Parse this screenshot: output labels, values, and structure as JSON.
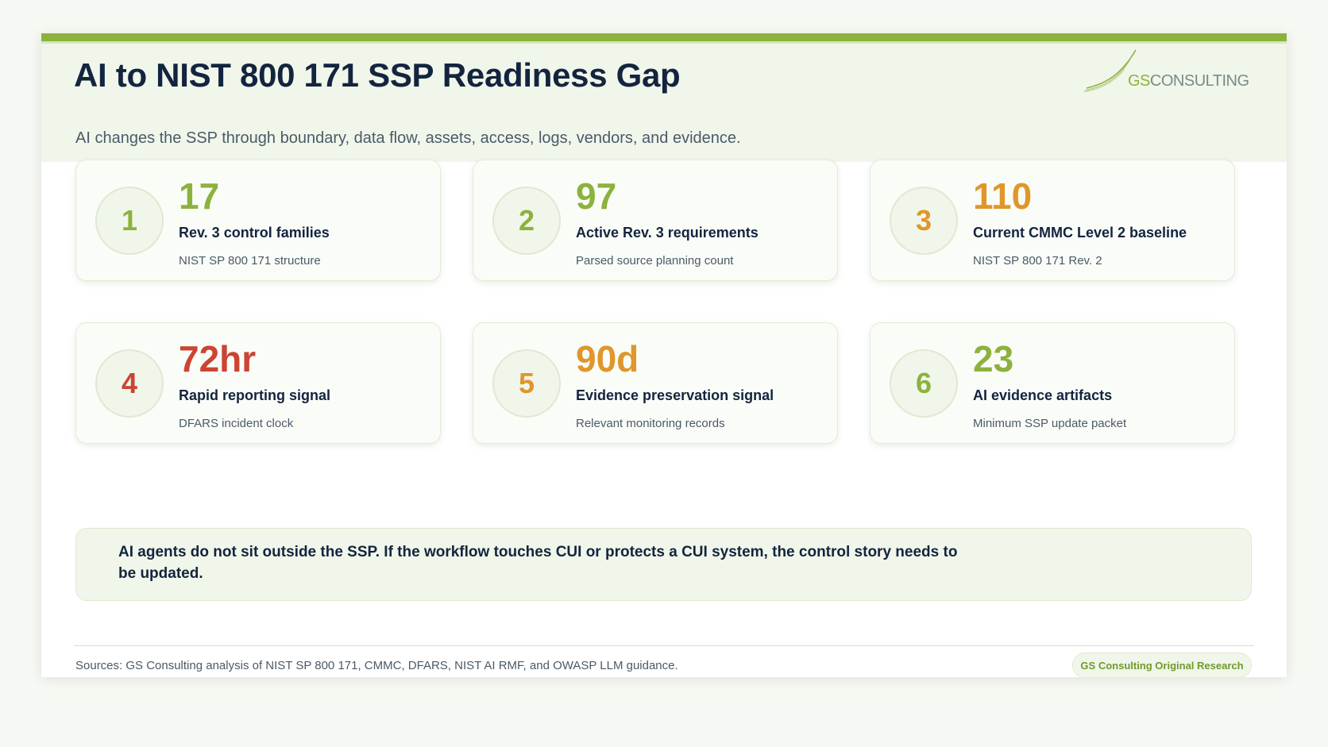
{
  "header": {
    "title": "AI to NIST 800 171 SSP Readiness Gap",
    "subtitle": "AI changes the SSP through boundary, data flow, assets, access, logs, vendors, and evidence.",
    "logo": {
      "gs": "GS",
      "consulting": "CONSULTING"
    }
  },
  "colors": {
    "brand_green": "#8cb23e",
    "amber": "#e0962a",
    "red": "#cc4433",
    "navy": "#13243f"
  },
  "stats": [
    {
      "number": "1",
      "value": "17",
      "label": "Rev. 3 control families",
      "note": "NIST SP 800 171 structure",
      "color": "#8cb23e"
    },
    {
      "number": "2",
      "value": "97",
      "label": "Active Rev. 3 requirements",
      "note": "Parsed source planning count",
      "color": "#8cb23e"
    },
    {
      "number": "3",
      "value": "110",
      "label": "Current CMMC Level 2 baseline",
      "note": "NIST SP 800 171 Rev. 2",
      "color": "#e0962a"
    },
    {
      "number": "4",
      "value": "72hr",
      "label": "Rapid reporting signal",
      "note": "DFARS incident clock",
      "color": "#cc4433"
    },
    {
      "number": "5",
      "value": "90d",
      "label": "Evidence preservation signal",
      "note": "Relevant monitoring records",
      "color": "#e0962a"
    },
    {
      "number": "6",
      "value": "23",
      "label": "AI evidence artifacts",
      "note": "Minimum SSP update packet",
      "color": "#8cb23e"
    }
  ],
  "callout": {
    "text": "AI agents do not sit outside the SSP. If the workflow touches CUI or protects a CUI system, the control story needs to be updated."
  },
  "footer": {
    "sources": "Sources: GS Consulting analysis of NIST SP 800 171, CMMC, DFARS, NIST AI RMF, and OWASP LLM guidance.",
    "badge": "GS Consulting Original Research"
  }
}
